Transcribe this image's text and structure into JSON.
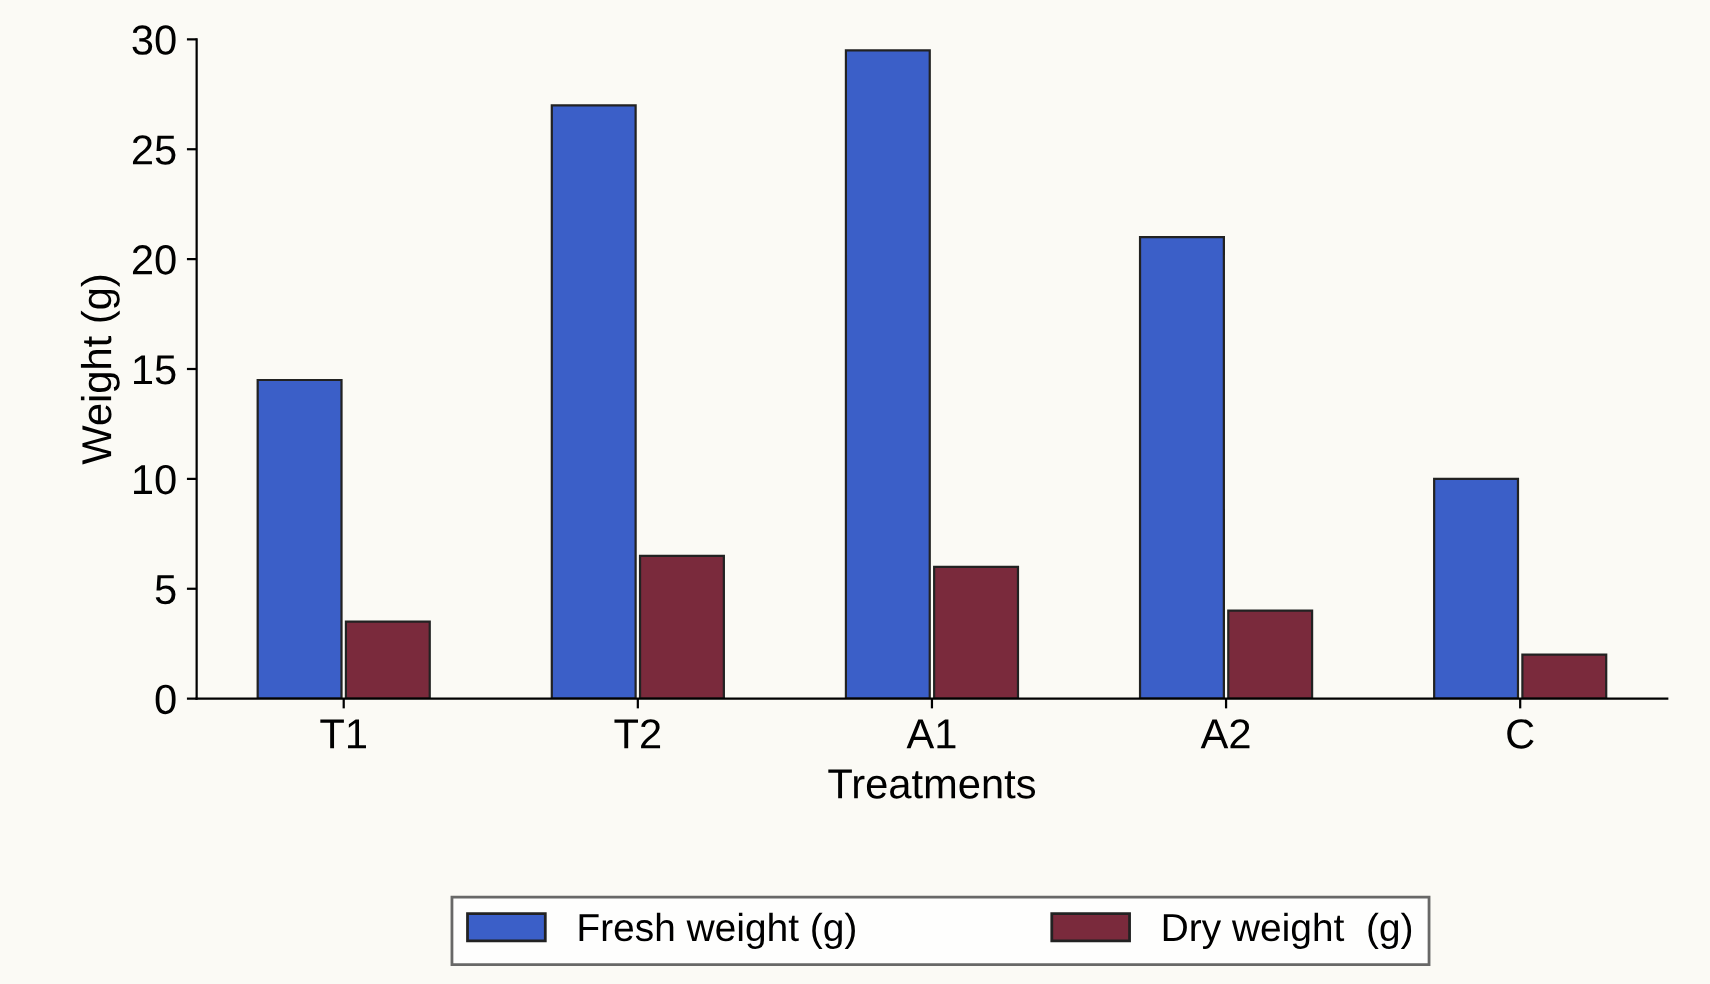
{
  "chart_data": {
    "type": "bar",
    "xlabel": "Treatments",
    "ylabel": "Weight (g)",
    "categories": [
      "T1",
      "T2",
      "A1",
      "A2",
      "C"
    ],
    "series": [
      {
        "name": "Fresh weight (g)",
        "color": "#3b5fc8",
        "values": [
          14.5,
          27,
          29.5,
          21,
          10
        ]
      },
      {
        "name": "Dry weight  (g)",
        "color": "#7a2a3c",
        "values": [
          3.5,
          6.5,
          6,
          4,
          2
        ]
      }
    ],
    "ylim": [
      0,
      30
    ],
    "yticks": [
      0,
      5,
      10,
      15,
      20,
      25,
      30
    ],
    "grid": false,
    "legend": "bottom"
  }
}
